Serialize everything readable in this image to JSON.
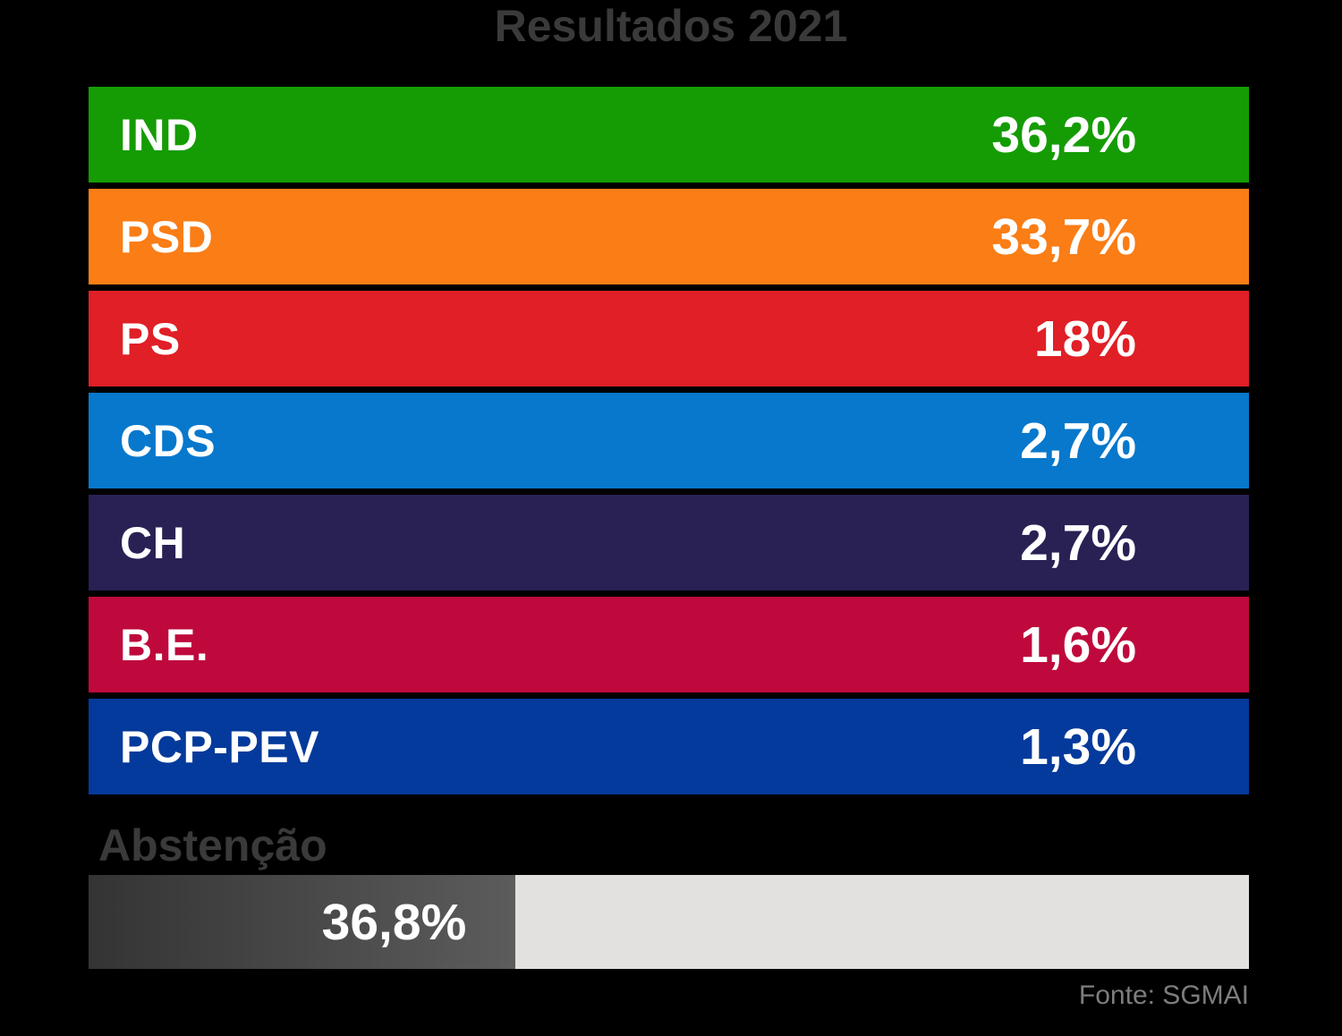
{
  "title": "Resultados 2021",
  "source": "Fonte: SGMAI",
  "colors": {
    "background": "#000000",
    "title_text": "#3a3a3a",
    "bar_text": "#ffffff",
    "abstention_track": "#e2e1df",
    "abstention_fill_start": "#343434",
    "abstention_fill_end": "#5c5c5c",
    "source_text": "#7d7d7d"
  },
  "bars": [
    {
      "label": "IND",
      "value_label": "36,2%",
      "color": "#159c04"
    },
    {
      "label": "PSD",
      "value_label": "33,7%",
      "color": "#fa7d16"
    },
    {
      "label": "PS",
      "value_label": "18%",
      "color": "#e01f26"
    },
    {
      "label": "CDS",
      "value_label": "2,7%",
      "color": "#0778cc"
    },
    {
      "label": "CH",
      "value_label": "2,7%",
      "color": "#292154"
    },
    {
      "label": "B.E.",
      "value_label": "1,6%",
      "color": "#bf093c"
    },
    {
      "label": "PCP-PEV",
      "value_label": "1,3%",
      "color": "#043a9b"
    }
  ],
  "abstention": {
    "label": "Abstenção",
    "percent": 36.8,
    "value_label": "36,8%"
  },
  "chart_data": {
    "type": "bar",
    "orientation": "horizontal",
    "title": "Resultados 2021",
    "categories": [
      "IND",
      "PSD",
      "PS",
      "CDS",
      "CH",
      "B.E.",
      "PCP-PEV"
    ],
    "values": [
      36.2,
      33.7,
      18,
      2.7,
      2.7,
      1.6,
      1.3
    ],
    "value_labels": [
      "36,2%",
      "33,7%",
      "18%",
      "2,7%",
      "2,7%",
      "1,6%",
      "1,3%"
    ],
    "bar_colors": [
      "#159c04",
      "#fa7d16",
      "#e01f26",
      "#0778cc",
      "#292154",
      "#bf093c",
      "#043a9b"
    ],
    "notes": "Party bars drawn full-width as colored bands with value labels inside; only the abstention bar is proportional.",
    "abstention": {
      "label": "Abstenção",
      "value": 36.8,
      "value_label": "36,8%"
    },
    "legend": "none",
    "grid": false,
    "source": "Fonte: SGMAI"
  }
}
